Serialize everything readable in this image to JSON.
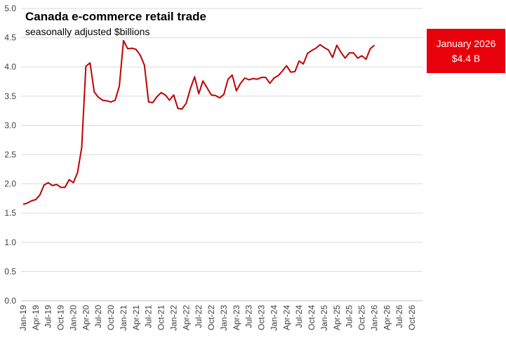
{
  "chart_data": {
    "type": "line",
    "title": "Canada e-commerce retail trade",
    "subtitle": "seasonally adjusted $billions",
    "ylim": [
      0,
      5
    ],
    "yticks": [
      "0.0",
      "0.5",
      "1.0",
      "1.5",
      "2.0",
      "2.5",
      "3.0",
      "3.5",
      "4.0",
      "4.5",
      "5.0"
    ],
    "xtick_labels": [
      "Jan-19",
      "Apr-19",
      "Jul-19",
      "Oct-19",
      "Jan-20",
      "Apr-20",
      "Jul-20",
      "Oct-20",
      "Jan-21",
      "Apr-21",
      "Jul-21",
      "Oct-21",
      "Jan-22",
      "Apr-22",
      "Jul-22",
      "Oct-22",
      "Jan-23",
      "Apr-23",
      "Jul-23",
      "Oct-23",
      "Jan-24",
      "Apr-24",
      "Jul-24",
      "Oct-24",
      "Jan-25",
      "Apr-25",
      "Jul-25",
      "Oct-25",
      "Jan-26",
      "Apr-26",
      "Jul-26",
      "Oct-26"
    ],
    "grid": true,
    "series": [
      {
        "color": "#c00000",
        "values": [
          1.65,
          1.67,
          1.71,
          1.73,
          1.81,
          1.98,
          2.02,
          1.97,
          1.99,
          1.94,
          1.94,
          2.07,
          2.02,
          2.19,
          2.62,
          4.01,
          4.07,
          3.57,
          3.48,
          3.43,
          3.42,
          3.4,
          3.43,
          3.67,
          4.45,
          4.31,
          4.32,
          4.3,
          4.2,
          4.03,
          3.4,
          3.39,
          3.49,
          3.56,
          3.52,
          3.43,
          3.52,
          3.29,
          3.28,
          3.38,
          3.63,
          3.83,
          3.54,
          3.76,
          3.64,
          3.52,
          3.51,
          3.47,
          3.53,
          3.79,
          3.86,
          3.59,
          3.72,
          3.81,
          3.78,
          3.8,
          3.79,
          3.82,
          3.82,
          3.72,
          3.81,
          3.85,
          3.93,
          4.02,
          3.91,
          3.92,
          4.1,
          4.05,
          4.23,
          4.28,
          4.32,
          4.38,
          4.33,
          4.29,
          4.16,
          4.37,
          4.25,
          4.15,
          4.24,
          4.24,
          4.15,
          4.19,
          4.13,
          4.31,
          4.37
        ]
      }
    ],
    "callout": {
      "line1": "January 2026",
      "line2": "$4.4 B",
      "color": "#e8000a"
    }
  }
}
